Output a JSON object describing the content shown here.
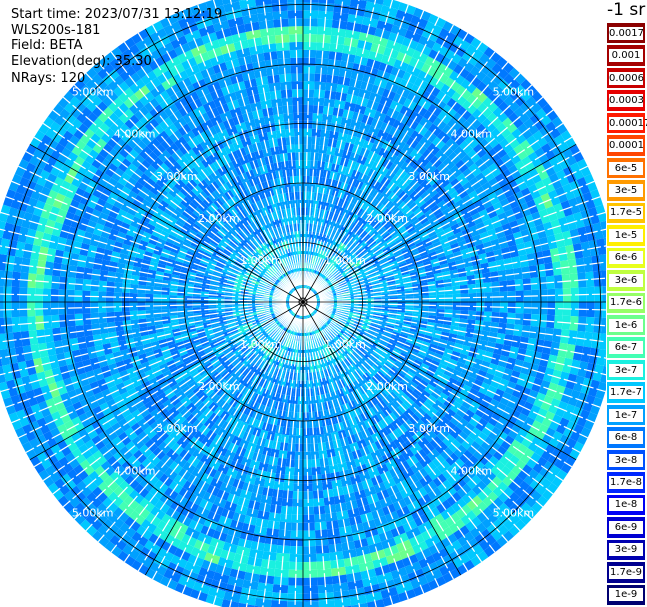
{
  "info": {
    "start_time": "Start time: 2023/07/31 13:12:19",
    "device": "WLS200s-181",
    "field": "Field: BETA",
    "elevation": "Elevation(deg): 35.30",
    "nrays": "NRays: 120"
  },
  "ppi": {
    "n_rays": 120,
    "max_range_km": 5.3,
    "range_ring_labels": [
      "1.00km",
      "2.00km",
      "3.00km",
      "4.00km",
      "5.00km"
    ],
    "ring_radii_km": [
      1,
      2,
      3,
      4,
      5
    ]
  },
  "colorbar": {
    "unit_label": "-1 sr",
    "ticks": [
      "0.0017",
      "0.001",
      "0.0006",
      "0.0003",
      "0.00017",
      "0.0001",
      "6e-5",
      "3e-5",
      "1.7e-5",
      "1e-5",
      "6e-6",
      "3e-6",
      "1.7e-6",
      "1e-6",
      "6e-7",
      "3e-7",
      "1.7e-7",
      "1e-7",
      "6e-8",
      "3e-8",
      "1.7e-8",
      "1e-8",
      "6e-9",
      "3e-9",
      "1.7e-9",
      "1e-9"
    ],
    "colors": [
      "#8b0000",
      "#a50000",
      "#c80000",
      "#e60000",
      "#ff1a00",
      "#ff4500",
      "#ff7000",
      "#ff9a00",
      "#ffc400",
      "#ffee00",
      "#e8ff1a",
      "#bfff40",
      "#96ff66",
      "#6cff8c",
      "#43ffb3",
      "#1af0e0",
      "#00c8ff",
      "#00a0ff",
      "#0078ff",
      "#0050ff",
      "#0028ff",
      "#0000f5",
      "#0000d2",
      "#0000b0",
      "#00008f",
      "#000070"
    ]
  }
}
